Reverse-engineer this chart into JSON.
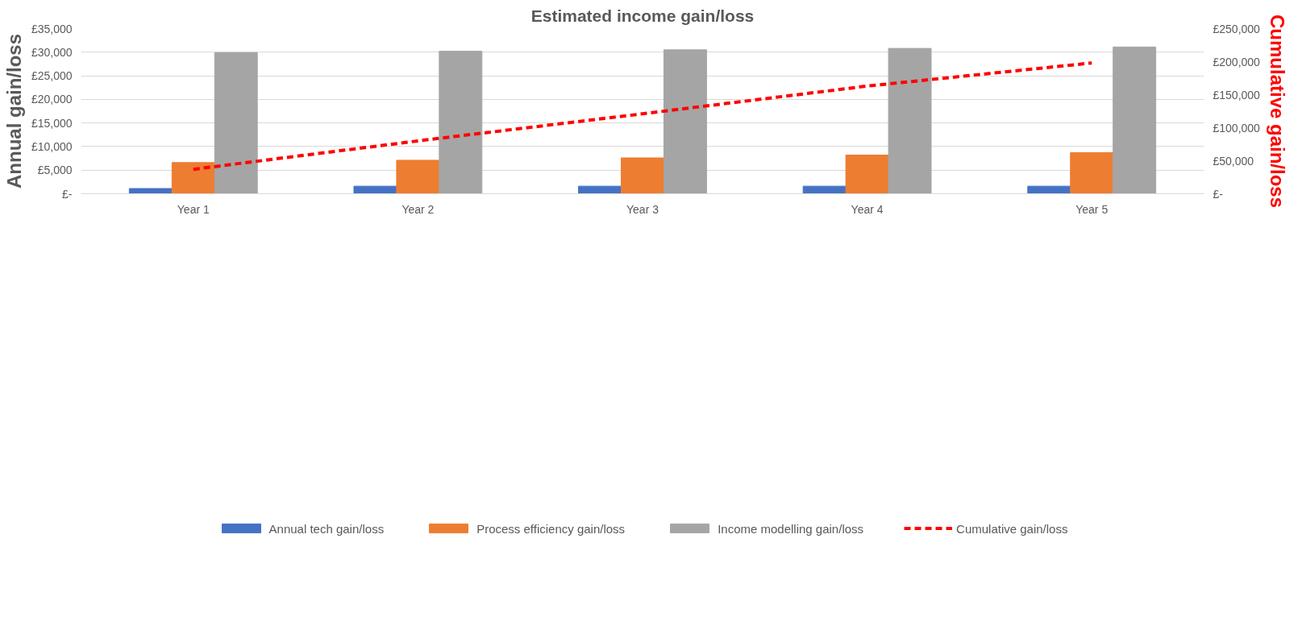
{
  "chart_data": {
    "type": "bar",
    "title": "Estimated income gain/loss",
    "categories": [
      "Year 1",
      "Year 2",
      "Year 3",
      "Year 4",
      "Year 5"
    ],
    "series": [
      {
        "name": "Annual tech gain/loss",
        "color": "#4472c4",
        "values": [
          1100,
          1600,
          1600,
          1600,
          1600
        ]
      },
      {
        "name": "Process efficiency gain/loss",
        "color": "#ed7d31",
        "values": [
          6600,
          7100,
          7600,
          8200,
          8700
        ]
      },
      {
        "name": "Income modelling gain/loss",
        "color": "#a5a5a5",
        "values": [
          29900,
          30200,
          30500,
          30800,
          31100
        ]
      },
      {
        "name": "Cumulative gain/loss",
        "color": "#ff0000",
        "type": "line",
        "axis": "y2",
        "line_style": "dashed",
        "values": [
          37000,
          80000,
          121000,
          163000,
          198000
        ]
      }
    ],
    "ylabel": "Annual gain/loss",
    "y2label": "Cumulative gain/loss",
    "ylim": [
      0,
      35000
    ],
    "yticks": [
      {
        "value": 0,
        "label": "£-"
      },
      {
        "value": 5000,
        "label": "£5,000"
      },
      {
        "value": 10000,
        "label": "£10,000"
      },
      {
        "value": 15000,
        "label": "£15,000"
      },
      {
        "value": 20000,
        "label": "£20,000"
      },
      {
        "value": 25000,
        "label": "£25,000"
      },
      {
        "value": 30000,
        "label": "£30,000"
      },
      {
        "value": 35000,
        "label": "£35,000"
      }
    ],
    "y2lim": [
      0,
      250000
    ],
    "y2ticks": [
      {
        "value": 0,
        "label": "£-"
      },
      {
        "value": 50000,
        "label": "£50,000"
      },
      {
        "value": 100000,
        "label": "£100,000"
      },
      {
        "value": 150000,
        "label": "£150,000"
      },
      {
        "value": 200000,
        "label": "£200,000"
      },
      {
        "value": 250000,
        "label": "£250,000"
      }
    ],
    "grid": "y",
    "legend": "bottom"
  }
}
